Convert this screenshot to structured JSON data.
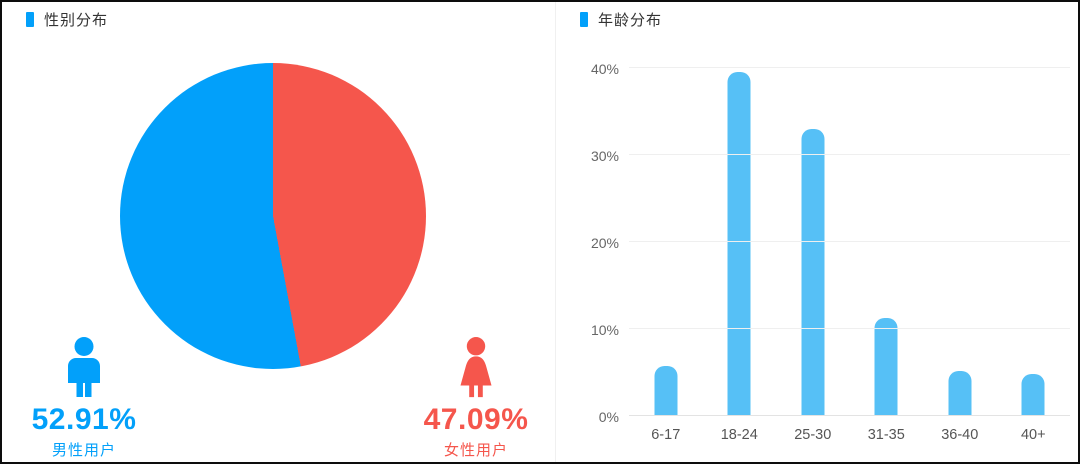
{
  "chart_data": [
    {
      "type": "pie",
      "title": "性别分布",
      "start_angle": "top",
      "legend_position": "bottom",
      "slices": [
        {
          "name": "男性用户",
          "value": 52.91,
          "display": "52.91%",
          "color": "#02a0fa"
        },
        {
          "name": "女性用户",
          "value": 47.09,
          "display": "47.09%",
          "color": "#f5564c"
        }
      ]
    },
    {
      "type": "bar",
      "title": "年龄分布",
      "categories": [
        "6-17",
        "18-24",
        "25-30",
        "31-35",
        "36-40",
        "40+"
      ],
      "values": [
        5.8,
        39.5,
        33.0,
        11.3,
        5.2,
        4.8
      ],
      "yticks": [
        0,
        10,
        20,
        30,
        40
      ],
      "ytick_suffix": "%",
      "ylim": [
        0,
        40
      ],
      "grid": true,
      "bar_color": "#56c0f6"
    }
  ],
  "colors": {
    "male_blue": "#02a0fa",
    "female_red": "#f5564c",
    "bar_blue": "#56c0f6"
  }
}
